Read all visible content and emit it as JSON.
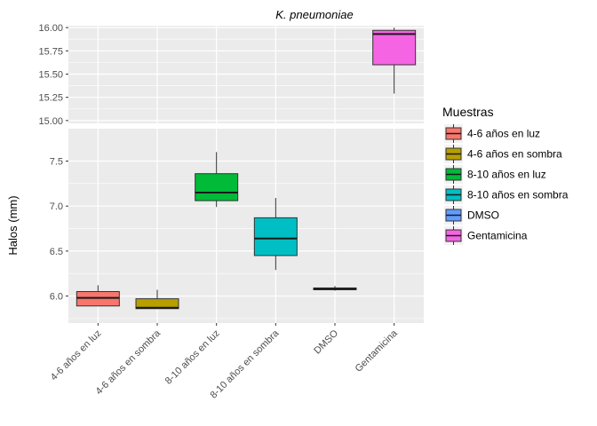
{
  "chart_data": {
    "type": "box",
    "title": "K. pneumoniae",
    "xlabel": "",
    "ylabel": "Halos (mm)",
    "categories": [
      "4-6 años en luz",
      "4-6 años en sombra",
      "8-10 años en luz",
      "8-10 años en sombra",
      "DMSO",
      "Gentamicina"
    ],
    "legend": {
      "title": "Muestras",
      "placement": "right"
    },
    "grid": true,
    "y_axis_break": true,
    "panels": [
      {
        "name": "upper",
        "ylim": [
          14.97,
          16.02
        ],
        "ticks": [
          15.0,
          15.25,
          15.5,
          15.75,
          16.0
        ],
        "tick_labels": [
          "15.00",
          "15.25",
          "15.50",
          "15.75",
          "16.00"
        ]
      },
      {
        "name": "lower",
        "ylim": [
          5.7,
          7.86
        ],
        "ticks": [
          6.0,
          6.5,
          7.0,
          7.5
        ],
        "tick_labels": [
          "6.0",
          "6.5",
          "7.0",
          "7.5"
        ]
      }
    ],
    "boxes": [
      {
        "category": "4-6 años en luz",
        "color": "#F8766D",
        "panel": "lower",
        "min": 5.89,
        "q1": 5.89,
        "median": 5.98,
        "q3": 6.05,
        "max": 6.12
      },
      {
        "category": "4-6 años en sombra",
        "color": "#B79F00",
        "panel": "lower",
        "min": 5.86,
        "q1": 5.86,
        "median": 5.87,
        "q3": 5.97,
        "max": 6.07
      },
      {
        "category": "8-10 años en luz",
        "color": "#00BA38",
        "panel": "lower",
        "min": 6.99,
        "q1": 7.06,
        "median": 7.15,
        "q3": 7.36,
        "max": 7.6
      },
      {
        "category": "8-10 años en sombra",
        "color": "#00BFC4",
        "panel": "lower",
        "min": 6.29,
        "q1": 6.45,
        "median": 6.64,
        "q3": 6.87,
        "max": 7.09
      },
      {
        "category": "DMSO",
        "color": "#619CFF",
        "panel": "lower",
        "min": 6.06,
        "q1": 6.07,
        "median": 6.08,
        "q3": 6.09,
        "max": 6.11
      },
      {
        "category": "Gentamicina",
        "color": "#F564E3",
        "panel": "upper",
        "min": 15.29,
        "q1": 15.6,
        "median": 15.93,
        "q3": 15.97,
        "max": 16.0
      }
    ]
  }
}
